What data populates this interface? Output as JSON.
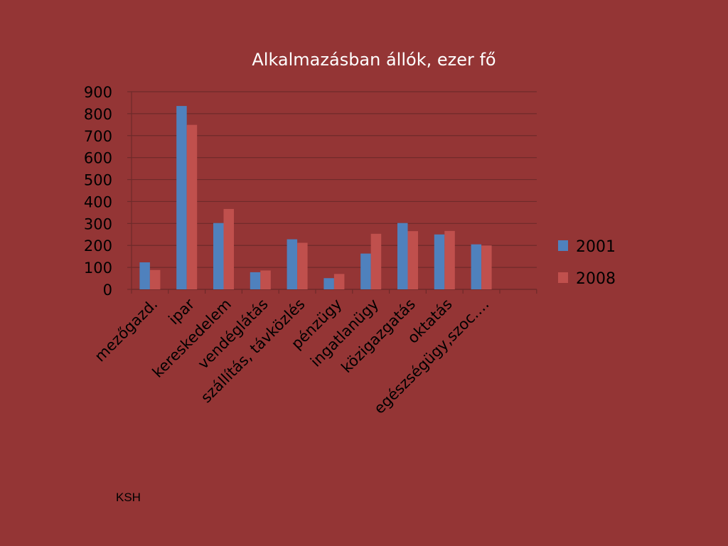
{
  "chart_data": {
    "type": "bar",
    "title": "Alkalmazásban állók, ezer fő",
    "categories": [
      "mezőgazd.",
      "ipar",
      "kereskedelem",
      "vendéglátás",
      "szállítás, távközlés",
      "pénzügy",
      "ingatlanügy",
      "közigazgatás",
      "oktatás",
      "egészségügy,szoc.…"
    ],
    "series": [
      {
        "name": "2001",
        "color": "#4f81bd",
        "values": [
          123,
          835,
          302,
          78,
          228,
          51,
          163,
          302,
          250,
          205
        ]
      },
      {
        "name": "2008",
        "color": "#c0504d",
        "values": [
          88,
          749,
          366,
          86,
          212,
          70,
          253,
          265,
          266,
          200
        ]
      }
    ],
    "ylim": [
      0,
      900
    ],
    "yticks": [
      0,
      100,
      200,
      300,
      400,
      500,
      600,
      700,
      800,
      900
    ],
    "grid": true,
    "legend_position": "right",
    "xlabel": "",
    "ylabel": ""
  },
  "source_note": "KSH"
}
